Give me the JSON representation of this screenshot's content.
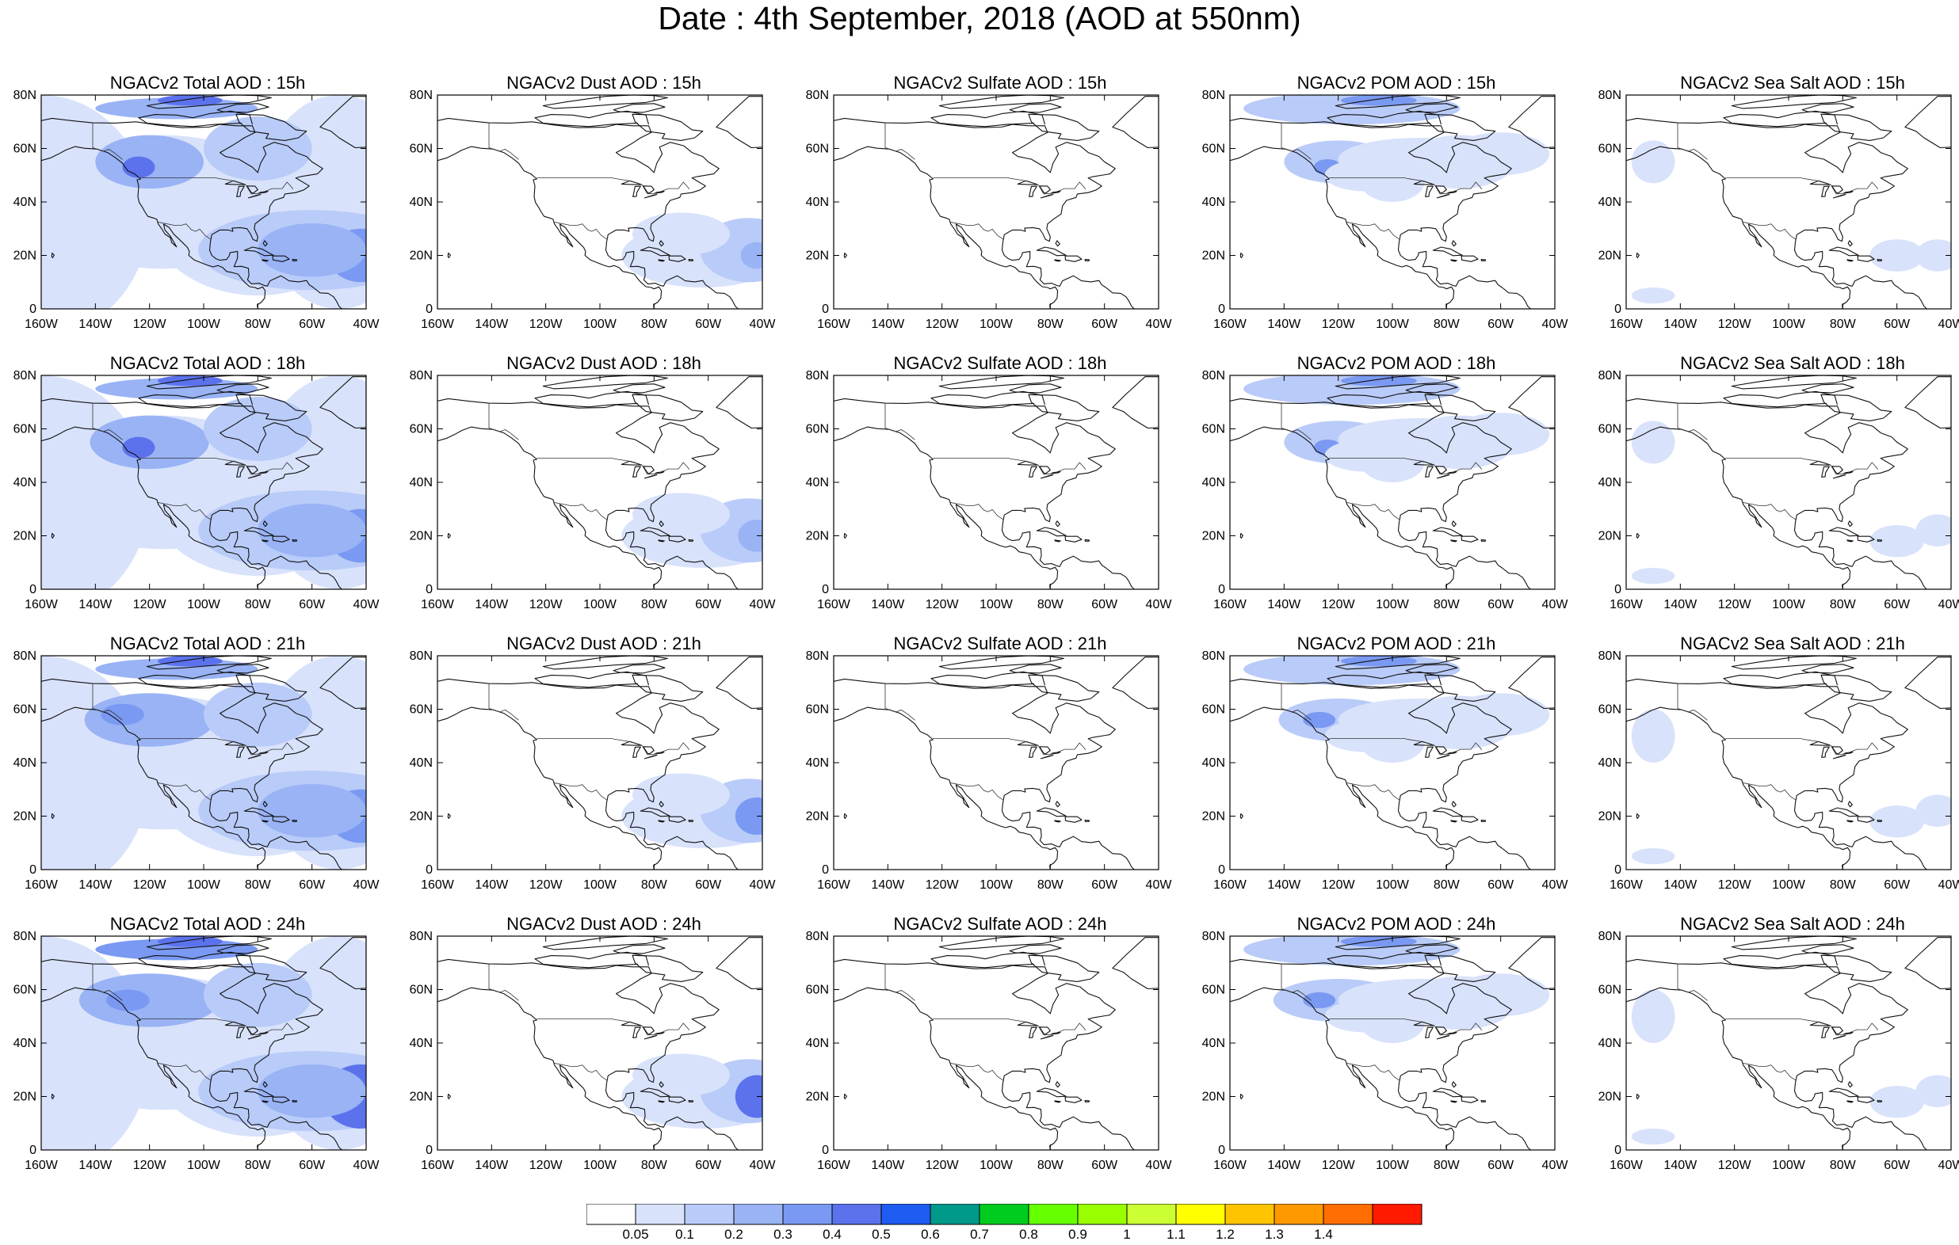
{
  "title": "Date : 4th September, 2018 (AOD at 550nm)",
  "axis": {
    "lat_labels": [
      "80N",
      "60N",
      "40N",
      "20N",
      "0"
    ],
    "lon_labels": [
      "160W",
      "140W",
      "120W",
      "100W",
      "80W",
      "60W",
      "40W"
    ]
  },
  "rows": [
    {
      "hour": "15h",
      "panels": [
        {
          "title": "NGACv2 Total AOD : 15h",
          "species": "total"
        },
        {
          "title": "NGACv2 Dust AOD : 15h",
          "species": "dust"
        },
        {
          "title": "NGACv2 Sulfate AOD : 15h",
          "species": "sulfate"
        },
        {
          "title": "NGACv2 POM AOD : 15h",
          "species": "pom"
        },
        {
          "title": "NGACv2 Sea Salt AOD : 15h",
          "species": "seasalt"
        }
      ]
    },
    {
      "hour": "18h",
      "panels": [
        {
          "title": "NGACv2 Total AOD : 18h",
          "species": "total"
        },
        {
          "title": "NGACv2 Dust AOD : 18h",
          "species": "dust"
        },
        {
          "title": "NGACv2 Sulfate AOD : 18h",
          "species": "sulfate"
        },
        {
          "title": "NGACv2 POM AOD : 18h",
          "species": "pom"
        },
        {
          "title": "NGACv2 Sea Salt AOD : 18h",
          "species": "seasalt"
        }
      ]
    },
    {
      "hour": "21h",
      "panels": [
        {
          "title": "NGACv2 Total AOD : 21h",
          "species": "total"
        },
        {
          "title": "NGACv2 Dust AOD : 21h",
          "species": "dust"
        },
        {
          "title": "NGACv2 Sulfate AOD : 21h",
          "species": "sulfate"
        },
        {
          "title": "NGACv2 POM AOD : 21h",
          "species": "pom"
        },
        {
          "title": "NGACv2 Sea Salt AOD : 21h",
          "species": "seasalt"
        }
      ]
    },
    {
      "hour": "24h",
      "panels": [
        {
          "title": "NGACv2 Total AOD : 24h",
          "species": "total"
        },
        {
          "title": "NGACv2 Dust AOD : 24h",
          "species": "dust"
        },
        {
          "title": "NGACv2 Sulfate AOD : 24h",
          "species": "sulfate"
        },
        {
          "title": "NGACv2 POM AOD : 24h",
          "species": "pom"
        },
        {
          "title": "NGACv2 Sea Salt  AOD : 24h",
          "species": "seasalt"
        }
      ]
    }
  ],
  "colorbar": {
    "labels": [
      "0.05",
      "0.1",
      "0.2",
      "0.3",
      "0.4",
      "0.5",
      "0.6",
      "0.7",
      "0.8",
      "0.9",
      "1",
      "1.1",
      "1.2",
      "1.3",
      "1.4"
    ],
    "colors": [
      "#ffffff",
      "#d8e2fb",
      "#b9cbf8",
      "#99b3f5",
      "#7a99f2",
      "#5b72ec",
      "#1f5cf2",
      "#00998a",
      "#00cc1f",
      "#66ff00",
      "#99ff00",
      "#ccff33",
      "#ffff00",
      "#ffc400",
      "#ff9900",
      "#ff6e00",
      "#ff1a00"
    ]
  }
}
